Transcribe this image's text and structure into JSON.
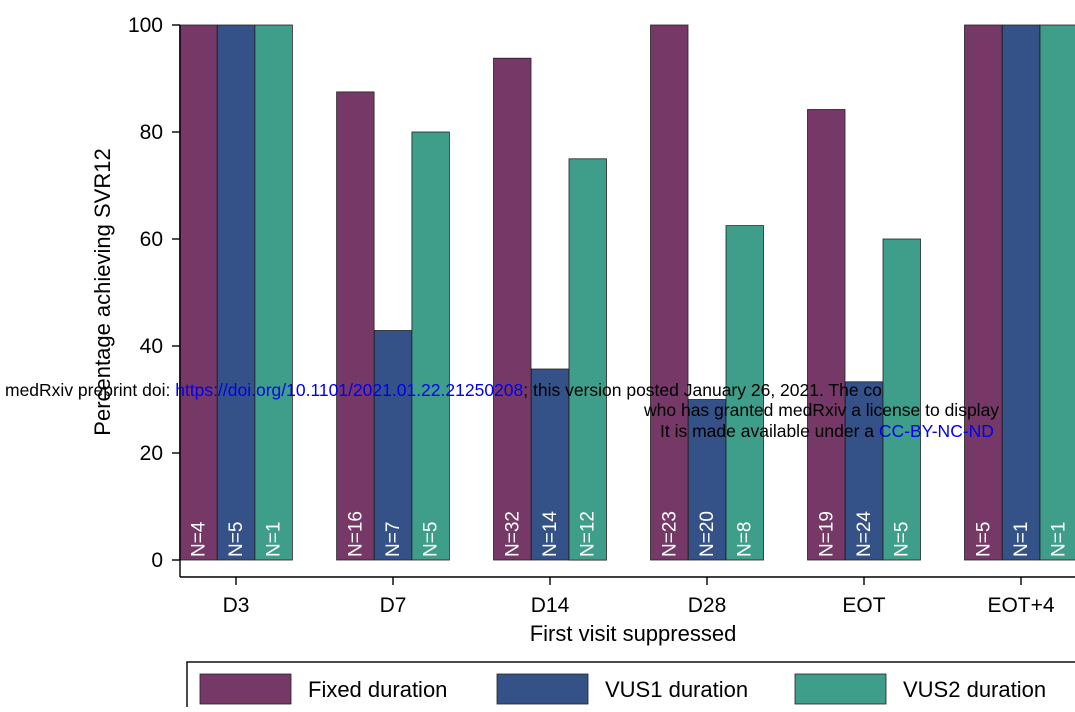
{
  "chart_data": {
    "type": "bar",
    "xlabel": "First visit suppressed",
    "ylabel": "Percentage achieving SVR12",
    "ylim": [
      0,
      100
    ],
    "yticks": [
      0,
      20,
      40,
      60,
      80,
      100
    ],
    "categories": [
      "D3",
      "D7",
      "D14",
      "D28",
      "EOT",
      "EOT+4"
    ],
    "series": [
      {
        "name": "Fixed duration",
        "color": "#763967",
        "values": [
          100,
          87.5,
          93.8,
          100,
          84.2,
          100
        ],
        "labels": [
          "N=4",
          "N=16",
          "N=32",
          "N=23",
          "N=19",
          "N=5"
        ]
      },
      {
        "name": "VUS1 duration",
        "color": "#355288",
        "values": [
          100,
          42.9,
          35.7,
          30,
          33.3,
          100
        ],
        "labels": [
          "N=5",
          "N=7",
          "N=14",
          "N=20",
          "N=24",
          "N=1"
        ]
      },
      {
        "name": "VUS2 duration",
        "color": "#3e9e89",
        "values": [
          100,
          80,
          75,
          62.5,
          60,
          100
        ],
        "labels": [
          "N=1",
          "N=5",
          "N=12",
          "N=8",
          "N=5",
          "N=1"
        ]
      }
    ],
    "legend_position": "bottom",
    "grid": false
  },
  "watermark": {
    "line1_prefix": "medRxiv preprint doi: ",
    "line1_link": "https://doi.org/10.1101/2021.01.22.21250208",
    "line1_suffix": "; this version posted January 26, 2021. The co",
    "line2": "who has granted medRxiv a license to display",
    "line3_prefix": "It is made available under a ",
    "line3_link": "CC-BY-NC-ND"
  }
}
